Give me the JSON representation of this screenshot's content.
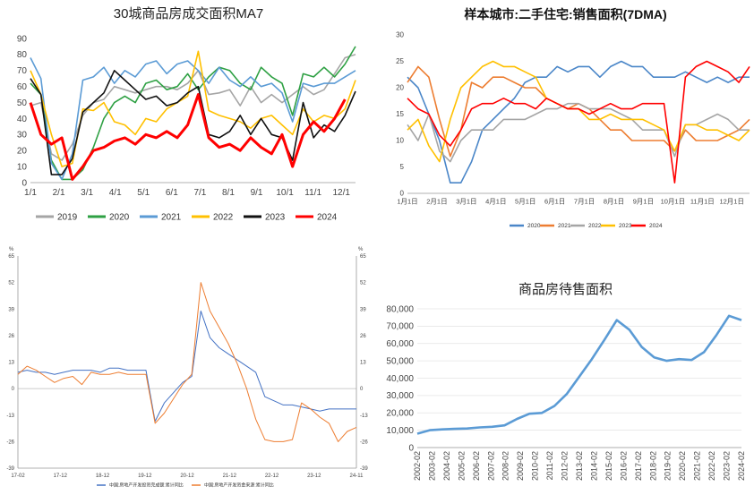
{
  "chart_data": [
    {
      "id": "transactions",
      "type": "line",
      "title": "30城商品房成交面积MA7",
      "ylim": [
        0,
        90
      ],
      "y_ticks": [
        "0",
        "10",
        "20",
        "30",
        "40",
        "50",
        "60",
        "70",
        "80",
        "90"
      ],
      "x_ticks": [
        "1/1",
        "2/1",
        "3/1",
        "4/1",
        "5/1",
        "6/1",
        "7/1",
        "8/1",
        "9/1",
        "10/1",
        "11/1",
        "12/1"
      ],
      "legend_position": "bottom",
      "series": [
        {
          "name": "2019",
          "color": "#a5a5a5",
          "values": [
            48,
            50,
            18,
            14,
            24,
            42,
            50,
            52,
            60,
            58,
            56,
            58,
            60,
            60,
            58,
            62,
            70,
            55,
            56,
            58,
            48,
            60,
            50,
            55,
            50,
            55,
            60,
            55,
            58,
            68,
            78,
            80
          ]
        },
        {
          "name": "2020",
          "color": "#2ea043",
          "values": [
            62,
            55,
            14,
            2,
            2,
            8,
            22,
            40,
            50,
            54,
            50,
            62,
            64,
            58,
            60,
            68,
            58,
            66,
            72,
            70,
            62,
            58,
            72,
            66,
            62,
            42,
            68,
            66,
            72,
            66,
            74,
            85
          ]
        },
        {
          "name": "2021",
          "color": "#5b9bd5",
          "values": [
            78,
            65,
            12,
            2,
            18,
            64,
            66,
            72,
            62,
            70,
            66,
            74,
            76,
            68,
            74,
            76,
            70,
            62,
            72,
            64,
            60,
            66,
            60,
            62,
            56,
            38,
            62,
            60,
            62,
            62,
            66,
            70
          ]
        },
        {
          "name": "2022",
          "color": "#ffc000",
          "values": [
            70,
            55,
            30,
            10,
            12,
            46,
            45,
            50,
            38,
            36,
            30,
            40,
            38,
            46,
            50,
            54,
            82,
            45,
            42,
            40,
            38,
            34,
            40,
            42,
            36,
            30,
            46,
            38,
            42,
            40,
            46,
            64
          ]
        },
        {
          "name": "2023",
          "color": "#111111",
          "values": [
            65,
            55,
            5,
            5,
            15,
            44,
            50,
            56,
            70,
            64,
            58,
            52,
            54,
            48,
            50,
            56,
            60,
            30,
            28,
            32,
            42,
            30,
            40,
            30,
            28,
            14,
            50,
            28,
            36,
            32,
            42,
            57
          ]
        },
        {
          "name": "2024",
          "color": "#ff0000",
          "values": [
            50,
            30,
            24,
            28,
            2,
            10,
            20,
            22,
            26,
            28,
            24,
            30,
            28,
            32,
            28,
            36,
            55,
            28,
            22,
            24,
            20,
            28,
            22,
            18,
            30,
            10,
            30,
            38,
            32,
            40,
            52,
            null
          ]
        }
      ]
    },
    {
      "id": "second_hand",
      "type": "line",
      "title": "样本城市:二手住宅:销售面积(7DMA)",
      "ylim": [
        0,
        30
      ],
      "y_ticks": [
        "0",
        "5",
        "10",
        "15",
        "20",
        "25",
        "30"
      ],
      "x_ticks": [
        "1月1日",
        "2月1日",
        "3月1日",
        "4月1日",
        "5月1日",
        "6月1日",
        "7月1日",
        "8月1日",
        "9月1日",
        "10月1日",
        "11月1日",
        "12月1日"
      ],
      "legend_position": "bottom",
      "series": [
        {
          "name": "2020",
          "color": "#4a86c8",
          "values": [
            22,
            20,
            15,
            10,
            2,
            2,
            6,
            12,
            14,
            16,
            18,
            21,
            22,
            22,
            24,
            23,
            24,
            24,
            22,
            24,
            25,
            24,
            24,
            22,
            22,
            22,
            23,
            22,
            21,
            22,
            21,
            22,
            22
          ]
        },
        {
          "name": "2021",
          "color": "#ed7d31",
          "values": [
            21,
            24,
            22,
            14,
            7,
            12,
            21,
            20,
            22,
            22,
            21,
            20,
            20,
            18,
            17,
            16,
            17,
            16,
            14,
            12,
            12,
            10,
            10,
            10,
            10,
            8,
            12,
            10,
            10,
            10,
            11,
            12,
            14
          ]
        },
        {
          "name": "2022",
          "color": "#a5a5a5",
          "values": [
            13,
            10,
            15,
            8,
            6,
            10,
            12,
            12,
            12,
            14,
            14,
            14,
            15,
            16,
            16,
            17,
            17,
            16,
            16,
            16,
            15,
            14,
            12,
            12,
            12,
            7,
            13,
            13,
            14,
            15,
            14,
            12,
            12
          ]
        },
        {
          "name": "2023",
          "color": "#ffc000",
          "values": [
            12,
            14,
            9,
            6,
            14,
            20,
            22,
            24,
            25,
            24,
            24,
            23,
            22,
            18,
            17,
            16,
            16,
            14,
            14,
            15,
            14,
            14,
            14,
            13,
            12,
            8,
            13,
            13,
            12,
            12,
            11,
            10,
            12
          ]
        },
        {
          "name": "2024",
          "color": "#ff0000",
          "values": [
            18,
            16,
            15,
            11,
            9,
            12,
            16,
            17,
            17,
            18,
            17,
            17,
            16,
            18,
            17,
            16,
            16,
            15,
            16,
            17,
            16,
            16,
            17,
            17,
            17,
            2,
            22,
            24,
            25,
            24,
            23,
            21,
            24
          ]
        }
      ]
    },
    {
      "id": "investment",
      "type": "line",
      "ylim": [
        -39,
        65
      ],
      "y_ticks": [
        "-39",
        "-26",
        "-13",
        "0",
        "13",
        "26",
        "39",
        "52",
        "65"
      ],
      "y_unit": "%",
      "x_ticks": [
        "17-02",
        "17-12",
        "18-12",
        "19-12",
        "20-12",
        "21-12",
        "22-12",
        "23-12",
        "24-11"
      ],
      "legend_position": "bottom",
      "series": [
        {
          "name": "中国:房地产开发投资完成额:累计同比",
          "color": "#4472c4",
          "values": [
            8,
            9,
            8,
            8,
            7,
            8,
            9,
            9,
            9,
            8,
            10,
            10,
            9,
            9,
            9,
            -16,
            -7,
            -2,
            3,
            6,
            38,
            25,
            20,
            17,
            14,
            11,
            8,
            -4,
            -6,
            -8,
            -8,
            -9,
            -10,
            -11,
            -10,
            -10,
            -10,
            -10
          ]
        },
        {
          "name": "中国:房地产开发资金来源:累计同比",
          "color": "#ed7d31",
          "values": [
            7,
            11,
            9,
            6,
            3,
            5,
            6,
            2,
            8,
            7,
            7,
            8,
            7,
            7,
            7,
            -17,
            -12,
            -5,
            2,
            7,
            52,
            38,
            30,
            22,
            12,
            0,
            -15,
            -25,
            -26,
            -26,
            -25,
            -7,
            -10,
            -14,
            -17,
            -26,
            -21,
            -19
          ]
        }
      ]
    },
    {
      "id": "inventory",
      "type": "line",
      "title": "商品房待售面积",
      "ylim": [
        0,
        80000
      ],
      "y_ticks": [
        "0",
        "10,000",
        "20,000",
        "30,000",
        "40,000",
        "50,000",
        "60,000",
        "70,000",
        "80,000"
      ],
      "x_ticks": [
        "2002-02",
        "2003-02",
        "2004-02",
        "2005-02",
        "2006-02",
        "2007-02",
        "2008-02",
        "2009-02",
        "2010-02",
        "2011-02",
        "2012-02",
        "2013-02",
        "2014-02",
        "2015-02",
        "2016-02",
        "2017-02",
        "2018-02",
        "2019-02",
        "2020-02",
        "2021-02",
        "2022-02",
        "2023-02",
        "2024-02"
      ],
      "series": [
        {
          "name": "商品房待售面积",
          "color": "#5b9bd5",
          "values": [
            8000,
            10000,
            10500,
            10800,
            11000,
            11600,
            12000,
            12800,
            16500,
            19500,
            20000,
            24000,
            31000,
            41000,
            51000,
            62000,
            73500,
            68000,
            58000,
            52000,
            50000,
            51000,
            50500,
            55000,
            65000,
            76000,
            73500
          ]
        }
      ]
    }
  ],
  "icons": {
    "legend_marker": "line-swatch"
  }
}
